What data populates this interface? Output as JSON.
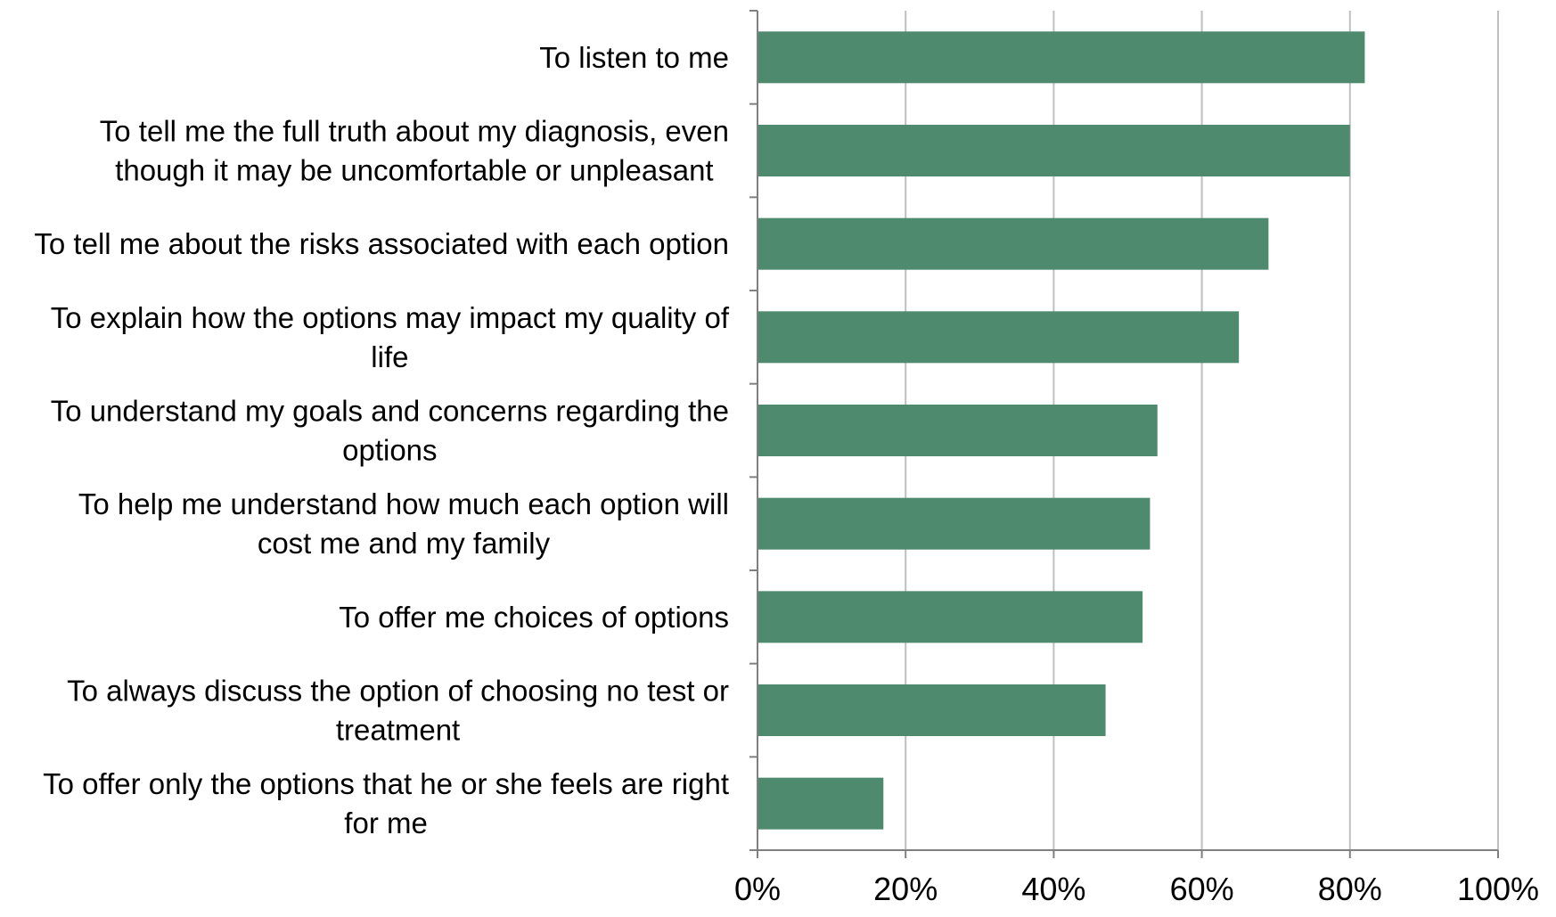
{
  "chart_data": {
    "type": "bar",
    "orientation": "horizontal",
    "title": "",
    "xlabel": "",
    "ylabel": "",
    "xlim": [
      0,
      100
    ],
    "x_ticks": [
      "0%",
      "20%",
      "40%",
      "60%",
      "80%",
      "100%"
    ],
    "grid": true,
    "legend": "none",
    "bar_color": "#4d8a6e",
    "categories": [
      "To listen to me",
      "To tell me the full truth about my diagnosis, even though it may be uncomfortable or unpleasant",
      "To tell me about the risks associated with each option",
      "To explain how the options may impact my quality of life",
      "To understand my goals and concerns regarding the options",
      "To help me understand how much each option will cost me and my family",
      "To offer me choices of options",
      "To always discuss the option of choosing no test or treatment",
      "To offer only the options that he or she feels are right for me"
    ],
    "category_lines": [
      [
        "To listen to me"
      ],
      [
        "To tell me the full truth about my diagnosis, even",
        "though it may be uncomfortable or unpleasant"
      ],
      [
        "To tell me about the risks associated with each option"
      ],
      [
        "To explain how the options may impact my quality of",
        "life"
      ],
      [
        "To understand my goals and concerns regarding the",
        "options"
      ],
      [
        "To help me understand how much each option will",
        "cost me and my family"
      ],
      [
        "To offer me choices of options"
      ],
      [
        "To always discuss the option of choosing no test or",
        "treatment"
      ],
      [
        "To offer only the options that he or she feels are right",
        "for me"
      ]
    ],
    "values": [
      82,
      80,
      69,
      65,
      54,
      53,
      52,
      47,
      17
    ]
  }
}
